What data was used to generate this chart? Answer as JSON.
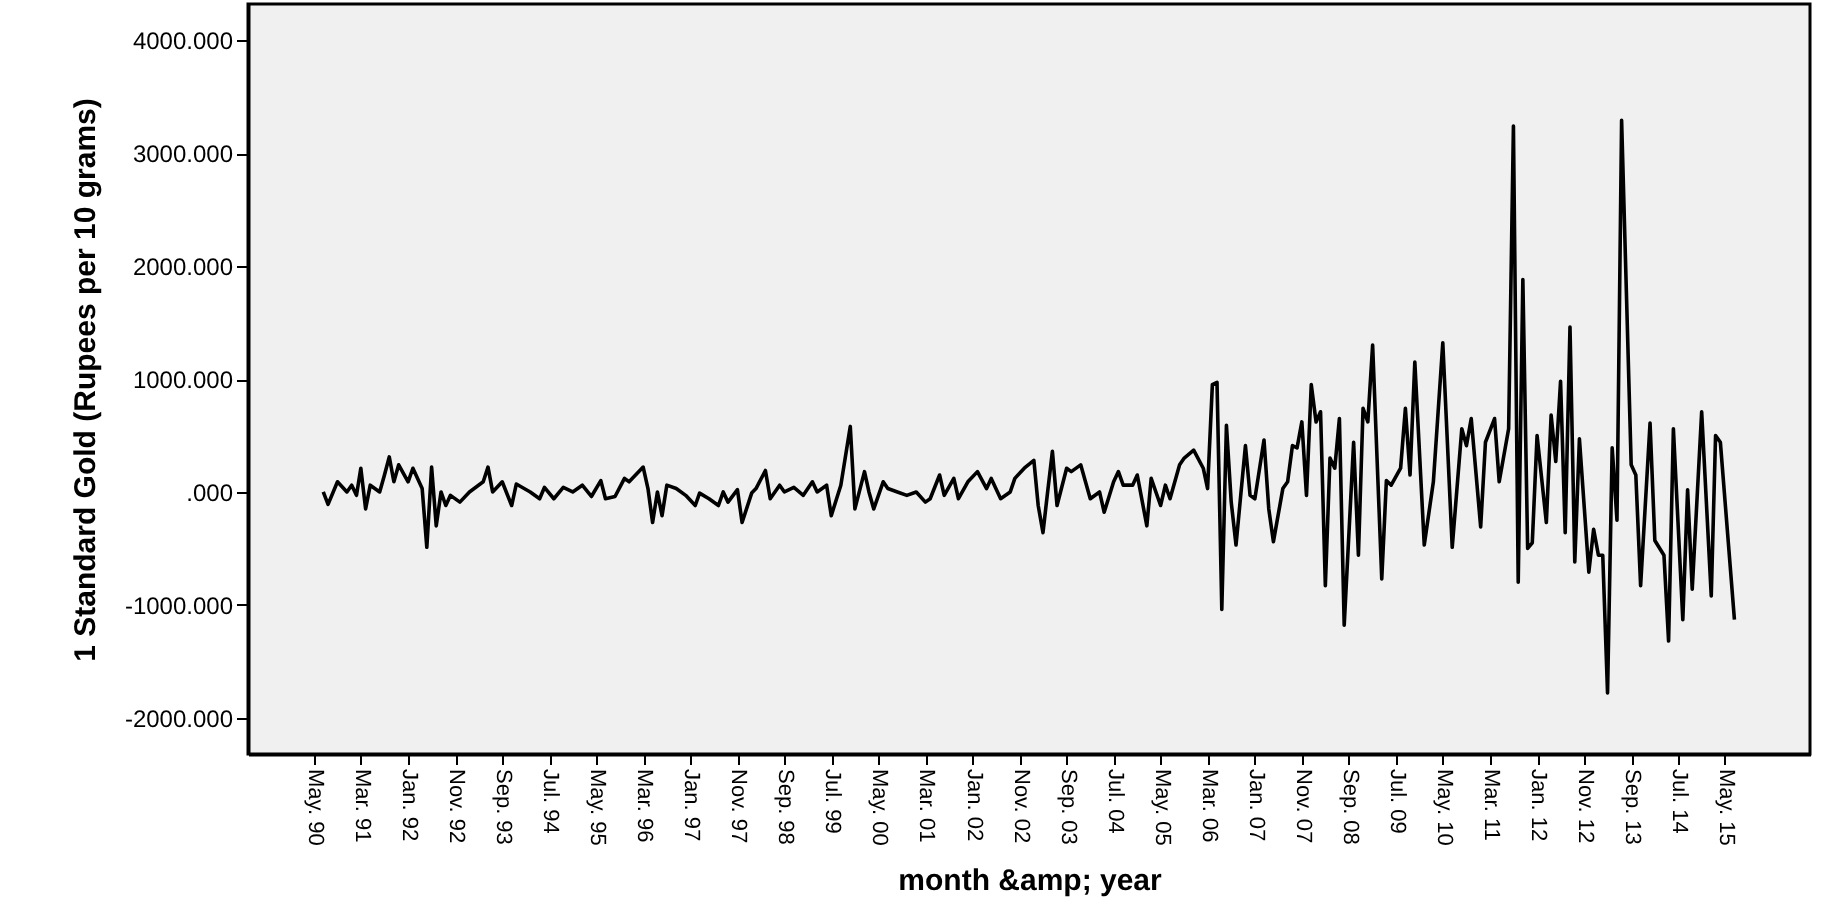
{
  "chart_data": {
    "type": "line",
    "xlabel": "month &amp; year",
    "ylabel": "1 Standard Gold (Rupees per 10 grams)",
    "xlim": [
      "1989-03",
      "2016-11"
    ],
    "ylim": [
      -2320,
      4320
    ],
    "xticks": [
      {
        "value": "1990-05",
        "label": "May. 90"
      },
      {
        "value": "1991-03",
        "label": "Mar. 91"
      },
      {
        "value": "1992-01",
        "label": "Jan. 92"
      },
      {
        "value": "1992-11",
        "label": "Nov. 92"
      },
      {
        "value": "1993-09",
        "label": "Sep. 93"
      },
      {
        "value": "1994-07",
        "label": "Jul. 94"
      },
      {
        "value": "1995-05",
        "label": "May. 95"
      },
      {
        "value": "1996-03",
        "label": "Mar. 96"
      },
      {
        "value": "1997-01",
        "label": "Jan. 97"
      },
      {
        "value": "1997-11",
        "label": "Nov. 97"
      },
      {
        "value": "1998-09",
        "label": "Sep. 98"
      },
      {
        "value": "1999-07",
        "label": "Jul. 99"
      },
      {
        "value": "2000-05",
        "label": "May. 00"
      },
      {
        "value": "2001-03",
        "label": "Mar. 01"
      },
      {
        "value": "2002-01",
        "label": "Jan. 02"
      },
      {
        "value": "2002-11",
        "label": "Nov. 02"
      },
      {
        "value": "2003-09",
        "label": "Sep. 03"
      },
      {
        "value": "2004-07",
        "label": "Jul. 04"
      },
      {
        "value": "2005-05",
        "label": "May. 05"
      },
      {
        "value": "2006-03",
        "label": "Mar. 06"
      },
      {
        "value": "2007-01",
        "label": "Jan. 07"
      },
      {
        "value": "2007-11",
        "label": "Nov. 07"
      },
      {
        "value": "2008-09",
        "label": "Sep. 08"
      },
      {
        "value": "2009-07",
        "label": "Jul. 09"
      },
      {
        "value": "2010-05",
        "label": "May. 10"
      },
      {
        "value": "2011-03",
        "label": "Mar. 11"
      },
      {
        "value": "2012-01",
        "label": "Jan. 12"
      },
      {
        "value": "2012-11",
        "label": "Nov. 12"
      },
      {
        "value": "2013-09",
        "label": "Sep. 13"
      },
      {
        "value": "2014-07",
        "label": "Jul. 14"
      },
      {
        "value": "2015-05",
        "label": "May. 15"
      }
    ],
    "yticks": [
      {
        "value": -2000,
        "label": "-2000.000"
      },
      {
        "value": -1000,
        "label": "-1000.000"
      },
      {
        "value": 0,
        "label": ".000"
      },
      {
        "value": 1000,
        "label": "1000.000"
      },
      {
        "value": 2000,
        "label": "2000.000"
      },
      {
        "value": 3000,
        "label": "3000.000"
      },
      {
        "value": 4000,
        "label": "4000.000"
      }
    ],
    "grid": false,
    "marker": "none",
    "line_style": "solid",
    "series": [
      {
        "color": "#000000",
        "x": [
          "1990-07",
          "1990-08",
          "1990-10",
          "1990-12",
          "1991-01",
          "1991-02",
          "1991-03",
          "1991-04",
          "1991-05",
          "1991-07",
          "1991-08",
          "1991-09",
          "1991-10",
          "1991-11",
          "1992-01",
          "1992-02",
          "1992-04",
          "1992-05",
          "1992-06",
          "1992-07",
          "1992-08",
          "1992-09",
          "1992-10",
          "1992-12",
          "1993-02",
          "1993-05",
          "1993-06",
          "1993-07",
          "1993-09",
          "1993-11",
          "1993-12",
          "1994-03",
          "1994-05",
          "1994-06",
          "1994-08",
          "1994-10",
          "1994-12",
          "1995-02",
          "1995-04",
          "1995-06",
          "1995-07",
          "1995-09",
          "1995-11",
          "1995-12",
          "1996-03",
          "1996-04",
          "1996-05",
          "1996-06",
          "1996-07",
          "1996-08",
          "1996-10",
          "1996-12",
          "1997-02",
          "1997-03",
          "1997-05",
          "1997-07",
          "1997-08",
          "1997-09",
          "1997-11",
          "1997-12",
          "1998-02",
          "1998-03",
          "1998-05",
          "1998-06",
          "1998-08",
          "1998-09",
          "1998-11",
          "1999-01",
          "1999-03",
          "1999-04",
          "1999-06",
          "1999-07",
          "1999-09",
          "1999-11",
          "1999-12",
          "2000-02",
          "2000-03",
          "2000-04",
          "2000-06",
          "2000-07",
          "2000-09",
          "2000-11",
          "2001-01",
          "2001-03",
          "2001-04",
          "2001-06",
          "2001-07",
          "2001-09",
          "2001-10",
          "2001-12",
          "2002-02",
          "2002-04",
          "2002-05",
          "2002-07",
          "2002-09",
          "2002-10",
          "2002-12",
          "2003-02",
          "2003-03",
          "2003-04",
          "2003-05",
          "2003-06",
          "2003-07",
          "2003-09",
          "2003-10",
          "2003-12",
          "2004-01",
          "2004-02",
          "2004-04",
          "2004-05",
          "2004-07",
          "2004-08",
          "2004-09",
          "2004-11",
          "2004-12",
          "2005-02",
          "2005-03",
          "2005-05",
          "2005-06",
          "2005-07",
          "2005-09",
          "2005-10",
          "2005-12",
          "2006-02",
          "2006-03",
          "2006-04",
          "2006-05",
          "2006-06",
          "2006-07",
          "2006-08",
          "2006-09",
          "2006-11",
          "2006-12",
          "2007-01",
          "2007-03",
          "2007-04",
          "2007-05",
          "2007-07",
          "2007-08",
          "2007-09",
          "2007-10",
          "2007-11",
          "2007-12",
          "2008-01",
          "2008-02",
          "2008-03",
          "2008-04",
          "2008-05",
          "2008-06",
          "2008-07",
          "2008-08",
          "2008-10",
          "2008-11",
          "2008-12",
          "2009-01",
          "2009-02",
          "2009-04",
          "2009-05",
          "2009-06",
          "2009-08",
          "2009-09",
          "2009-10",
          "2009-11",
          "2010-01",
          "2010-03",
          "2010-05",
          "2010-07",
          "2010-09",
          "2010-10",
          "2010-11",
          "2011-01",
          "2011-02",
          "2011-04",
          "2011-05",
          "2011-07",
          "2011-08",
          "2011-09",
          "2011-10",
          "2011-11",
          "2011-12",
          "2012-01",
          "2012-03",
          "2012-04",
          "2012-05",
          "2012-06",
          "2012-07",
          "2012-08",
          "2012-09",
          "2012-10",
          "2012-12",
          "2013-01",
          "2013-02",
          "2013-03",
          "2013-04",
          "2013-05",
          "2013-06",
          "2013-07",
          "2013-09",
          "2013-10",
          "2013-11",
          "2014-01",
          "2014-02",
          "2014-04",
          "2014-05",
          "2014-06",
          "2014-08",
          "2014-09",
          "2014-10",
          "2014-12",
          "2015-02",
          "2015-03",
          "2015-04",
          "2015-07"
        ],
        "values": [
          0,
          -110,
          90,
          0,
          60,
          -30,
          210,
          -150,
          60,
          0,
          150,
          310,
          90,
          240,
          90,
          210,
          30,
          -490,
          220,
          -300,
          0,
          -120,
          -30,
          -90,
          0,
          90,
          220,
          0,
          90,
          -120,
          70,
          0,
          -60,
          40,
          -60,
          40,
          0,
          60,
          -40,
          100,
          -60,
          -40,
          120,
          90,
          220,
          30,
          -270,
          0,
          -210,
          60,
          30,
          -30,
          -120,
          -10,
          -60,
          -120,
          0,
          -90,
          20,
          -270,
          -10,
          30,
          190,
          -60,
          60,
          0,
          40,
          -30,
          90,
          0,
          60,
          -210,
          60,
          580,
          -150,
          180,
          0,
          -150,
          90,
          30,
          0,
          -30,
          0,
          -90,
          -60,
          150,
          -30,
          120,
          -60,
          90,
          180,
          30,
          120,
          -60,
          0,
          120,
          210,
          280,
          -120,
          -360,
          0,
          360,
          -120,
          210,
          180,
          240,
          90,
          -60,
          0,
          -180,
          90,
          180,
          60,
          60,
          150,
          -300,
          120,
          -120,
          60,
          -60,
          240,
          300,
          370,
          210,
          30,
          950,
          970,
          -1040,
          590,
          -90,
          -470,
          410,
          -30,
          -60,
          460,
          -150,
          -440,
          30,
          90,
          410,
          390,
          620,
          -30,
          950,
          620,
          710,
          -830,
          300,
          210,
          650,
          -1180,
          440,
          -560,
          740,
          620,
          1300,
          -770,
          100,
          60,
          210,
          740,
          150,
          1150,
          -470,
          90,
          1320,
          -490,
          560,
          410,
          650,
          -310,
          440,
          650,
          90,
          560,
          3240,
          -800,
          1880,
          -500,
          -450,
          500,
          -270,
          680,
          270,
          980,
          -360,
          1460,
          -620,
          470,
          -710,
          -330,
          -560,
          -560,
          -1780,
          390,
          -250,
          3290,
          240,
          150,
          -830,
          610,
          -430,
          -560,
          -1320,
          560,
          -1130,
          20,
          -860,
          710,
          -920,
          500,
          440,
          -1130
        ]
      }
    ]
  }
}
